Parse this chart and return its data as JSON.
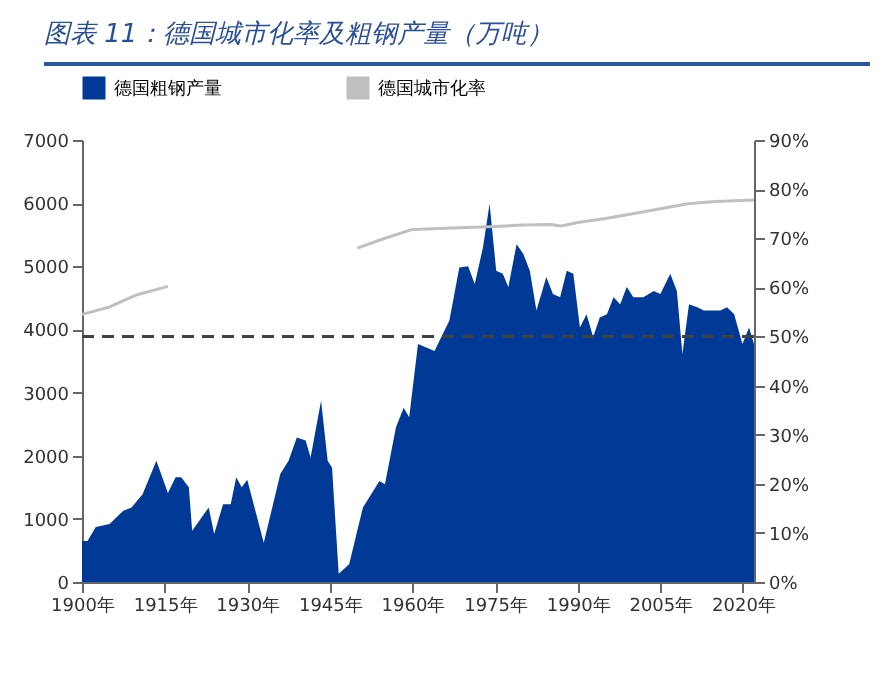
{
  "chart_data": {
    "type": "area",
    "title": "图表 11：德国城市化率及粗钢产量（万吨）",
    "x": [
      1900,
      1901,
      1902.5,
      1905,
      1907.5,
      1909,
      1911,
      1913.5,
      1915.6,
      1917,
      1918,
      1919.4,
      1920,
      1923,
      1924,
      1925.6,
      1927,
      1928,
      1929,
      1930,
      1933,
      1936,
      1937.5,
      1939,
      1940.6,
      1941.5,
      1943.4,
      1944.6,
      1945.4,
      1946.6,
      1948.5,
      1951,
      1954,
      1955,
      1957,
      1958.4,
      1959.4,
      1961,
      1964,
      1966.7,
      1968.5,
      1970.1,
      1971.3,
      1972.8,
      1974,
      1975.2,
      1976.4,
      1977.4,
      1978.9,
      1980.1,
      1981.3,
      1982.5,
      1984.3,
      1985.5,
      1986.8,
      1988,
      1989.2,
      1990.4,
      1991.6,
      1992.8,
      1994,
      1995.3,
      1996.5,
      1997.7,
      1998.9,
      2000.1,
      2001.9,
      2003.8,
      2005,
      2006.8,
      2008,
      2009,
      2010.2,
      2011.7,
      2012.9,
      2015.9,
      2017.1,
      2018.4,
      2019.9,
      2021.1,
      2022
    ],
    "series": [
      {
        "name": "德国粗钢产量",
        "color": "#003a96",
        "values": [
          650,
          650,
          870,
          920,
          1130,
          1180,
          1390,
          1920,
          1410,
          1660,
          1660,
          1500,
          810,
          1180,
          760,
          1230,
          1230,
          1660,
          1500,
          1620,
          620,
          1710,
          1920,
          2290,
          2240,
          1970,
          2870,
          1920,
          1810,
          130,
          280,
          1180,
          1600,
          1550,
          2450,
          2760,
          2610,
          3770,
          3660,
          4140,
          4980,
          5000,
          4720,
          5300,
          5990,
          4930,
          4880,
          4670,
          5350,
          5200,
          4930,
          4300,
          4830,
          4560,
          4510,
          4930,
          4880,
          4030,
          4240,
          3880,
          4190,
          4240,
          4510,
          4400,
          4670,
          4510,
          4510,
          4610,
          4560,
          4880,
          4610,
          3610,
          4400,
          4350,
          4300,
          4300,
          4350,
          4240,
          3770,
          4030,
          3770
        ]
      },
      {
        "name": "德国城市化率",
        "type": "line",
        "axis": "y2",
        "color": "#c0c0c0",
        "x": [
          1900,
          1905,
          1910,
          1915.6,
          1916,
          1950,
          1955,
          1960,
          1965,
          1970,
          1975,
          1980,
          1985,
          1987,
          1990,
          1995,
          2000,
          2005,
          2010,
          2015,
          2022
        ],
        "values": [
          54.5,
          56,
          58.5,
          60.2,
          null,
          68,
          70,
          71.8,
          72,
          72.2,
          72.4,
          72.7,
          72.8,
          72.5,
          73.2,
          74,
          75,
          76,
          77,
          77.5,
          77.8
        ]
      }
    ],
    "xlim": [
      1900,
      2022
    ],
    "xticks": [
      {
        "value": 1900,
        "label": "1900年"
      },
      {
        "value": 1915,
        "label": "1915年"
      },
      {
        "value": 1930,
        "label": "1930年"
      },
      {
        "value": 1945,
        "label": "1945年"
      },
      {
        "value": 1960,
        "label": "1960年"
      },
      {
        "value": 1975,
        "label": "1975年"
      },
      {
        "value": 1990,
        "label": "1990年"
      },
      {
        "value": 2005,
        "label": "2005年"
      },
      {
        "value": 2020,
        "label": "2020年"
      }
    ],
    "ylim": [
      0,
      7000
    ],
    "yticks": [
      0,
      1000,
      2000,
      3000,
      4000,
      5000,
      6000,
      7000
    ],
    "y2lim": [
      0,
      90
    ],
    "y2ticks": [
      {
        "value": 0,
        "label": "0%"
      },
      {
        "value": 10,
        "label": "10%"
      },
      {
        "value": 20,
        "label": "20%"
      },
      {
        "value": 30,
        "label": "30%"
      },
      {
        "value": 40,
        "label": "40%"
      },
      {
        "value": 50,
        "label": "50%"
      },
      {
        "value": 60,
        "label": "60%"
      },
      {
        "value": 70,
        "label": "70%"
      },
      {
        "value": 80,
        "label": "80%"
      },
      {
        "value": 90,
        "label": "90%"
      }
    ],
    "ref_lines": [
      {
        "axis": "y2",
        "value": 50,
        "color": "#404040",
        "line_style": "dashed"
      }
    ],
    "grid": false,
    "legend": "top"
  }
}
